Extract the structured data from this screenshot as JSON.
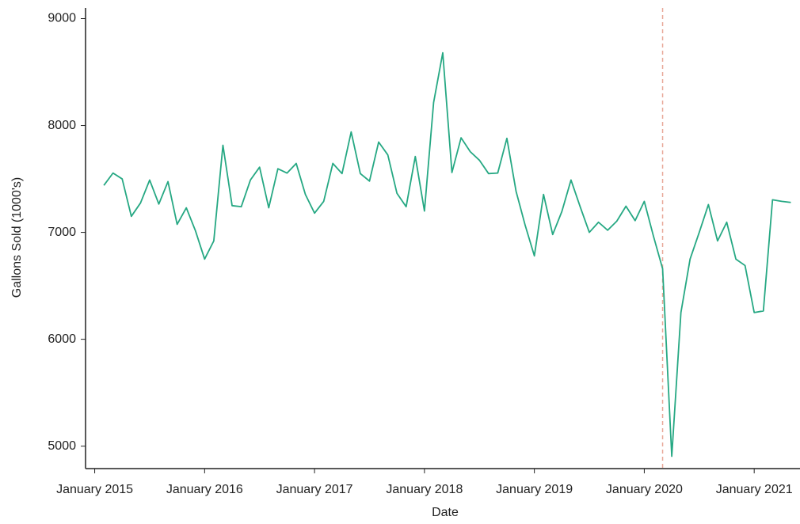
{
  "chart_data": {
    "type": "line",
    "x_label": "Date",
    "y_label": "Gallons Sold (1000's)",
    "x": [
      "2015-02",
      "2015-03",
      "2015-04",
      "2015-05",
      "2015-06",
      "2015-07",
      "2015-08",
      "2015-09",
      "2015-10",
      "2015-11",
      "2015-12",
      "2016-01",
      "2016-02",
      "2016-03",
      "2016-04",
      "2016-05",
      "2016-06",
      "2016-07",
      "2016-08",
      "2016-09",
      "2016-10",
      "2016-11",
      "2016-12",
      "2017-01",
      "2017-02",
      "2017-03",
      "2017-04",
      "2017-05",
      "2017-06",
      "2017-07",
      "2017-08",
      "2017-09",
      "2017-10",
      "2017-11",
      "2017-12",
      "2018-01",
      "2018-02",
      "2018-03",
      "2018-04",
      "2018-05",
      "2018-06",
      "2018-07",
      "2018-08",
      "2018-09",
      "2018-10",
      "2018-11",
      "2018-12",
      "2019-01",
      "2019-02",
      "2019-03",
      "2019-04",
      "2019-05",
      "2019-06",
      "2019-07",
      "2019-08",
      "2019-09",
      "2019-10",
      "2019-11",
      "2019-12",
      "2020-01",
      "2020-02",
      "2020-03",
      "2020-04",
      "2020-05",
      "2020-06",
      "2020-07",
      "2020-08",
      "2020-09",
      "2020-10",
      "2020-11",
      "2020-12",
      "2021-01",
      "2021-02",
      "2021-03",
      "2021-04",
      "2021-05"
    ],
    "series": [
      {
        "name": "Gallons Sold",
        "color": "#26a883",
        "values": [
          7440,
          7555,
          7500,
          7150,
          7275,
          7490,
          7265,
          7475,
          7075,
          7230,
          7015,
          6750,
          6920,
          7815,
          7250,
          7240,
          7490,
          7610,
          7230,
          7595,
          7555,
          7645,
          7355,
          7180,
          7290,
          7645,
          7550,
          7940,
          7550,
          7480,
          7845,
          7725,
          7365,
          7240,
          7710,
          7200,
          8215,
          8680,
          7560,
          7885,
          7755,
          7675,
          7550,
          7555,
          7880,
          7385,
          7065,
          6780,
          7355,
          6980,
          7195,
          7490,
          7240,
          7000,
          7095,
          7020,
          7105,
          7245,
          7110,
          7290,
          6965,
          6660,
          4905,
          6250,
          6750,
          7000,
          7260,
          6920,
          7095,
          6750,
          6690,
          6250,
          6265,
          7305,
          7290,
          7280
        ]
      }
    ],
    "vline": {
      "x": "2020-03",
      "color": "#e8a898"
    },
    "xlim": [
      "2014-12",
      "2021-06"
    ],
    "xticks": [
      {
        "value": "2015-01",
        "label": "January 2015"
      },
      {
        "value": "2016-01",
        "label": "January 2016"
      },
      {
        "value": "2017-01",
        "label": "January 2017"
      },
      {
        "value": "2018-01",
        "label": "January 2018"
      },
      {
        "value": "2019-01",
        "label": "January 2019"
      },
      {
        "value": "2020-01",
        "label": "January 2020"
      },
      {
        "value": "2021-01",
        "label": "January 2021"
      }
    ],
    "ylim": [
      4790,
      9100
    ],
    "yticks": [
      5000,
      6000,
      7000,
      8000,
      9000
    ]
  }
}
